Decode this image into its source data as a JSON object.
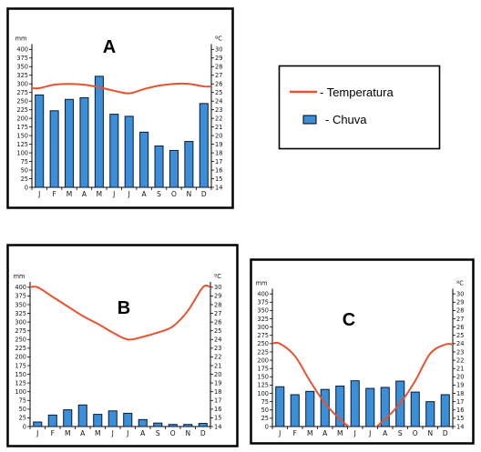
{
  "legend": {
    "temperature_label": "- Temperatura",
    "rain_label": "- Chuva",
    "temperature_color": "#e8522f",
    "rain_color": "#3a8fd8"
  },
  "chart_data": [
    {
      "type": "bar",
      "title": "A",
      "categories": [
        "J",
        "F",
        "M",
        "A",
        "M",
        "J",
        "J",
        "A",
        "S",
        "O",
        "N",
        "D"
      ],
      "series": [
        {
          "name": "Chuva",
          "values": [
            268,
            222,
            255,
            260,
            322,
            212,
            206,
            160,
            120,
            107,
            133,
            243
          ]
        },
        {
          "name": "Temperatura",
          "values": [
            25.5,
            25.9,
            26.0,
            25.9,
            25.6,
            25.2,
            24.9,
            25.4,
            25.8,
            26.0,
            26.0,
            25.7
          ]
        }
      ],
      "ylabel": "mm",
      "ylim": [
        0,
        410
      ],
      "y_ticks": [
        "0",
        "25",
        "50",
        "75",
        "100",
        "125",
        "150",
        "175",
        "200",
        "225",
        "250",
        "275",
        "300",
        "325",
        "350",
        "375",
        "400"
      ],
      "y2label": "ºC",
      "y2lim": [
        14,
        30.4
      ],
      "y2_ticks": [
        "14",
        "15",
        "16",
        "17",
        "18",
        "19",
        "20",
        "21",
        "22",
        "23",
        "24",
        "25",
        "26",
        "27",
        "28",
        "29",
        "30"
      ]
    },
    {
      "type": "bar",
      "title": "B",
      "categories": [
        "J",
        "F",
        "M",
        "A",
        "M",
        "J",
        "J",
        "A",
        "S",
        "O",
        "N",
        "D"
      ],
      "series": [
        {
          "name": "Chuva",
          "values": [
            13,
            33,
            48,
            62,
            35,
            45,
            38,
            20,
            10,
            6,
            6,
            9
          ]
        },
        {
          "name": "Temperatura",
          "values": [
            30.0,
            28.9,
            27.8,
            26.7,
            25.8,
            24.8,
            24.0,
            24.3,
            24.8,
            25.5,
            27.3,
            30.0
          ]
        }
      ],
      "ylabel": "mm",
      "ylim": [
        0,
        410
      ],
      "y_ticks": [
        "0",
        "25",
        "50",
        "75",
        "100",
        "125",
        "150",
        "175",
        "200",
        "225",
        "250",
        "275",
        "300",
        "325",
        "350",
        "375",
        "400"
      ],
      "y2label": "ºC",
      "y2lim": [
        14,
        30.4
      ],
      "y2_ticks": [
        "14",
        "15",
        "16",
        "17",
        "18",
        "19",
        "20",
        "21",
        "22",
        "23",
        "24",
        "25",
        "26",
        "27",
        "28",
        "29",
        "30"
      ]
    },
    {
      "type": "bar",
      "title": "C",
      "categories": [
        "J",
        "F",
        "M",
        "A",
        "M",
        "J",
        "J",
        "A",
        "S",
        "O",
        "N",
        "D"
      ],
      "series": [
        {
          "name": "Chuva",
          "values": [
            120,
            96,
            106,
            112,
            122,
            138,
            115,
            118,
            137,
            104,
            75,
            96
          ]
        },
        {
          "name": "Temperatura",
          "values": [
            24.0,
            22.5,
            19.5,
            16.8,
            14.9,
            13.5,
            13.5,
            14.9,
            16.8,
            19.5,
            22.8,
            23.9
          ]
        }
      ],
      "ylabel": "mm",
      "ylim": [
        0,
        410
      ],
      "y_ticks": [
        "0",
        "25",
        "50",
        "75",
        "100",
        "125",
        "150",
        "175",
        "200",
        "225",
        "250",
        "275",
        "300",
        "325",
        "350",
        "375",
        "400"
      ],
      "y2label": "ºC",
      "y2lim": [
        14,
        30.4
      ],
      "y2_ticks": [
        "14",
        "15",
        "16",
        "17",
        "18",
        "19",
        "20",
        "21",
        "22",
        "23",
        "24",
        "25",
        "26",
        "27",
        "28",
        "29",
        "30"
      ]
    }
  ]
}
